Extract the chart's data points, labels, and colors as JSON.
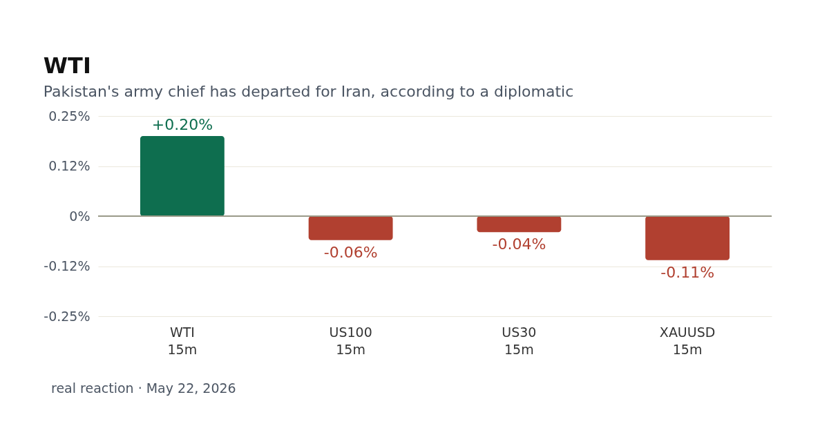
{
  "chart_data": {
    "type": "bar",
    "title": "WTI",
    "subtitle": "Pakistan's army chief has departed for Iran, according to a diplomatic",
    "categories": [
      "WTI\n15m",
      "US100\n15m",
      "US30\n15m",
      "XAUUSD\n15m"
    ],
    "values": [
      0.2,
      -0.06,
      -0.04,
      -0.11
    ],
    "colors": [
      "#0e6e4f",
      "#b14030",
      "#b14030",
      "#b14030"
    ],
    "value_labels": [
      "+0.20%",
      "-0.06%",
      "-0.04%",
      "-0.11%"
    ],
    "ylim": [
      -0.25,
      0.25
    ],
    "yticks": [
      {
        "value": -0.25,
        "label": "-0.25%"
      },
      {
        "value": -0.125,
        "label": "-0.12%"
      },
      {
        "value": 0,
        "label": "0%"
      },
      {
        "value": 0.125,
        "label": "0.12%"
      },
      {
        "value": 0.25,
        "label": "0.25%"
      }
    ],
    "grid": "y",
    "ref_lines": [
      {
        "axis": "y",
        "value": 0,
        "color": "#9a9a88"
      }
    ],
    "annotations": [
      "real reaction · May 22, 2026"
    ]
  }
}
